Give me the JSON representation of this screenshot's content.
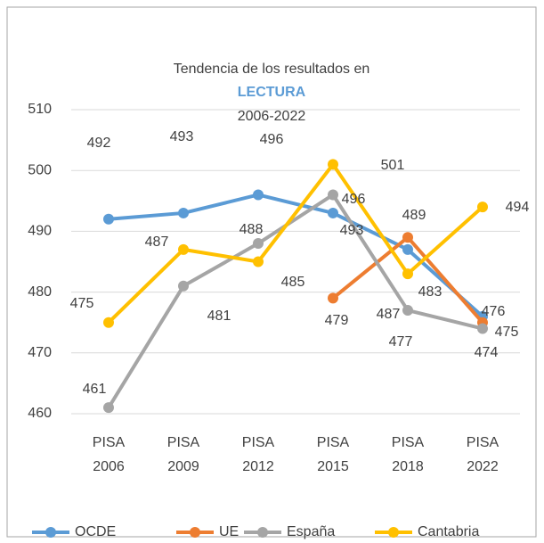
{
  "chart_data": {
    "type": "line",
    "title": "Tendencia de los resultados en",
    "subtitle": "LECTURA",
    "subtitle2": "2006-2022",
    "categories": [
      "PISA 2006",
      "PISA 2009",
      "PISA 2012",
      "PISA 2015",
      "PISA 2018",
      "PISA 2022"
    ],
    "series": [
      {
        "name": "OCDE",
        "color": "#5b9bd5",
        "values": [
          492,
          493,
          496,
          493,
          487,
          476
        ]
      },
      {
        "name": "UE",
        "color": "#ed7d31",
        "values": [
          null,
          null,
          null,
          479,
          489,
          475
        ]
      },
      {
        "name": "España",
        "color": "#a5a5a5",
        "values": [
          461,
          481,
          488,
          496,
          477,
          474
        ]
      },
      {
        "name": "Cantabria",
        "color": "#ffc000",
        "values": [
          475,
          487,
          485,
          501,
          483,
          494
        ]
      }
    ],
    "ylim": [
      460,
      510
    ],
    "yticks": [
      460,
      470,
      480,
      490,
      500,
      510
    ],
    "grid": true,
    "legend": "bottom",
    "subtitle_color": "#5b9bd5"
  }
}
